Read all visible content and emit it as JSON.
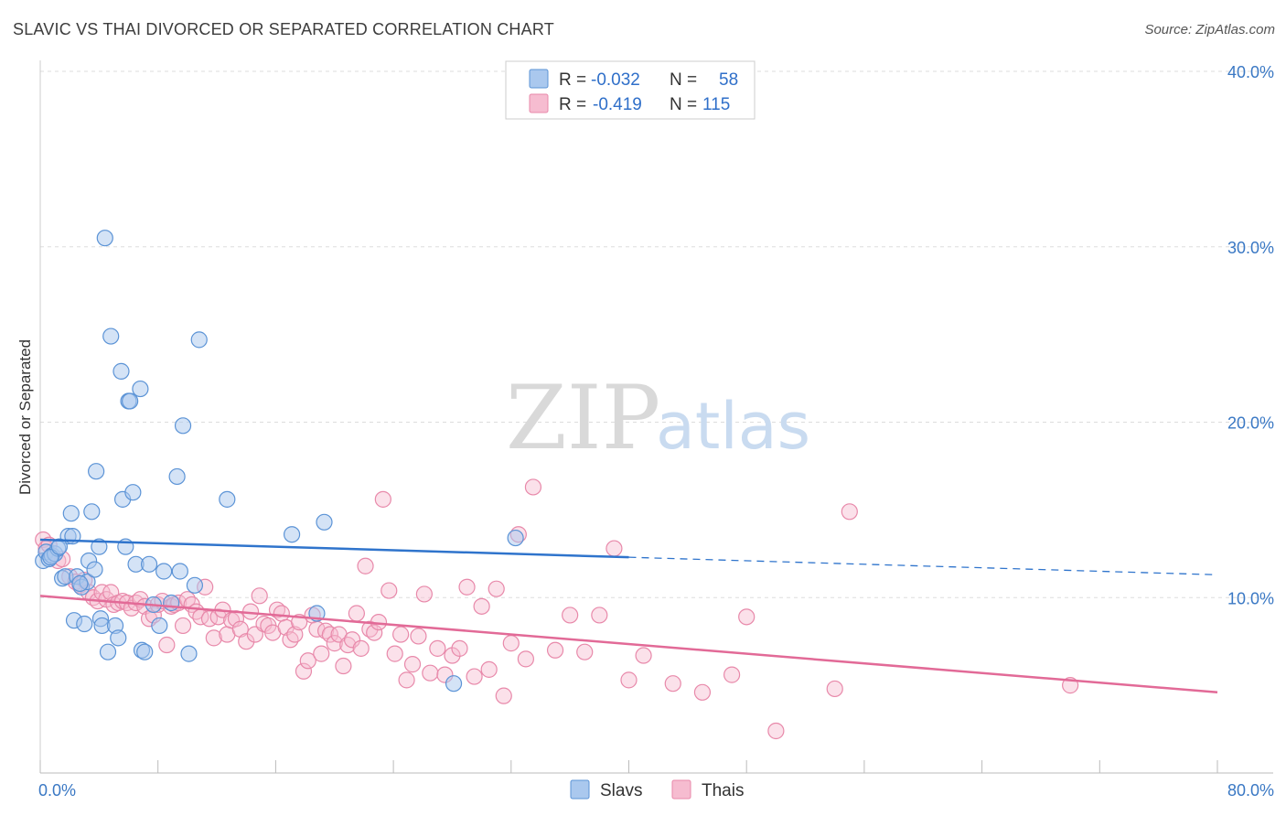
{
  "title": "SLAVIC VS THAI DIVORCED OR SEPARATED CORRELATION CHART",
  "source": "Source: ZipAtlas.com",
  "watermark": {
    "part1": "ZIP",
    "part2": "atlas"
  },
  "colors": {
    "slavs_fill": "#aac8ee",
    "slavs_stroke": "#5b93d6",
    "slavs_line": "#2f74cc",
    "thais_fill": "#f6bcd0",
    "thais_stroke": "#e889aa",
    "thais_line": "#e26a97",
    "grid": "#dddddd",
    "axis_label": "#3a78c4"
  },
  "legend": {
    "slavs": {
      "r_label": "R = ",
      "r_value": "-0.032",
      "n_label": "N = ",
      "n_value": "58"
    },
    "thais": {
      "r_label": "R = ",
      "r_value": "-0.419",
      "n_label": "N = ",
      "n_value": "115"
    }
  },
  "chart_data": {
    "type": "scatter",
    "ylabel": "Divorced or Separated",
    "xlim": [
      0,
      80
    ],
    "ylim": [
      0,
      40
    ],
    "x_tick_labels": [
      {
        "value": 0,
        "label": "0.0%"
      },
      {
        "value": 80,
        "label": "80.0%"
      }
    ],
    "y_tick_labels": [
      {
        "value": 10,
        "label": "10.0%"
      },
      {
        "value": 20,
        "label": "20.0%"
      },
      {
        "value": 30,
        "label": "30.0%"
      },
      {
        "value": 40,
        "label": "40.0%"
      }
    ],
    "series": [
      {
        "name": "Slavs",
        "trend": {
          "x0": 0,
          "y0": 13.3,
          "x1": 40,
          "y1": 12.3,
          "dash_to_x": 80,
          "dash_to_y": 11.3
        },
        "points": [
          [
            0.2,
            12.1
          ],
          [
            0.4,
            12.6
          ],
          [
            0.6,
            12.2
          ],
          [
            0.8,
            12.4
          ],
          [
            1.0,
            12.5
          ],
          [
            1.2,
            12.8
          ],
          [
            1.5,
            11.1
          ],
          [
            1.7,
            11.2
          ],
          [
            1.9,
            13.5
          ],
          [
            2.1,
            14.8
          ],
          [
            2.2,
            13.5
          ],
          [
            2.3,
            8.7
          ],
          [
            2.5,
            11.2
          ],
          [
            2.8,
            10.6
          ],
          [
            3.0,
            8.5
          ],
          [
            3.2,
            10.9
          ],
          [
            3.3,
            12.1
          ],
          [
            3.5,
            14.9
          ],
          [
            3.7,
            11.6
          ],
          [
            3.8,
            17.2
          ],
          [
            4.1,
            8.8
          ],
          [
            4.2,
            8.4
          ],
          [
            4.4,
            30.5
          ],
          [
            4.6,
            6.9
          ],
          [
            4.8,
            24.9
          ],
          [
            5.1,
            8.4
          ],
          [
            5.3,
            7.7
          ],
          [
            5.5,
            22.9
          ],
          [
            5.6,
            15.6
          ],
          [
            5.8,
            12.9
          ],
          [
            6.0,
            21.2
          ],
          [
            6.1,
            21.2
          ],
          [
            6.3,
            16.0
          ],
          [
            6.5,
            11.9
          ],
          [
            6.8,
            21.9
          ],
          [
            6.9,
            7.0
          ],
          [
            7.1,
            6.9
          ],
          [
            7.4,
            11.9
          ],
          [
            7.7,
            9.6
          ],
          [
            8.1,
            8.4
          ],
          [
            8.4,
            11.5
          ],
          [
            8.9,
            9.7
          ],
          [
            9.3,
            16.9
          ],
          [
            9.5,
            11.5
          ],
          [
            9.7,
            19.8
          ],
          [
            10.1,
            6.8
          ],
          [
            10.5,
            10.7
          ],
          [
            10.8,
            24.7
          ],
          [
            12.7,
            15.6
          ],
          [
            17.1,
            13.6
          ],
          [
            19.3,
            14.3
          ],
          [
            28.1,
            5.1
          ],
          [
            32.3,
            13.4
          ],
          [
            18.8,
            9.1
          ],
          [
            0.7,
            12.3
          ],
          [
            1.3,
            12.9
          ],
          [
            2.7,
            10.8
          ],
          [
            4.0,
            12.9
          ]
        ]
      },
      {
        "name": "Thais",
        "trend": {
          "x0": 0,
          "y0": 10.1,
          "x1": 80,
          "y1": 4.6
        },
        "points": [
          [
            0.2,
            13.3
          ],
          [
            0.4,
            12.8
          ],
          [
            0.6,
            13.0
          ],
          [
            0.8,
            12.4
          ],
          [
            1.2,
            12.1
          ],
          [
            1.5,
            12.2
          ],
          [
            2.0,
            11.2
          ],
          [
            2.4,
            10.9
          ],
          [
            2.7,
            10.7
          ],
          [
            3.0,
            11.0
          ],
          [
            3.3,
            10.3
          ],
          [
            3.6,
            10.0
          ],
          [
            3.9,
            9.8
          ],
          [
            4.2,
            10.3
          ],
          [
            4.5,
            9.9
          ],
          [
            4.8,
            10.3
          ],
          [
            5.0,
            9.6
          ],
          [
            5.3,
            9.7
          ],
          [
            5.6,
            9.8
          ],
          [
            5.9,
            9.7
          ],
          [
            6.2,
            9.4
          ],
          [
            6.5,
            9.7
          ],
          [
            6.8,
            9.9
          ],
          [
            7.1,
            9.5
          ],
          [
            7.4,
            8.8
          ],
          [
            7.7,
            9.0
          ],
          [
            8.0,
            9.6
          ],
          [
            8.3,
            9.8
          ],
          [
            8.6,
            7.3
          ],
          [
            8.9,
            9.5
          ],
          [
            9.1,
            9.6
          ],
          [
            9.4,
            9.7
          ],
          [
            9.7,
            8.4
          ],
          [
            10.0,
            9.9
          ],
          [
            10.3,
            9.6
          ],
          [
            10.6,
            9.2
          ],
          [
            10.9,
            8.9
          ],
          [
            11.2,
            10.6
          ],
          [
            11.5,
            8.8
          ],
          [
            11.8,
            7.7
          ],
          [
            12.1,
            8.9
          ],
          [
            12.4,
            9.3
          ],
          [
            12.7,
            7.9
          ],
          [
            13.0,
            8.7
          ],
          [
            13.3,
            8.8
          ],
          [
            13.6,
            8.2
          ],
          [
            14.0,
            7.5
          ],
          [
            14.3,
            9.2
          ],
          [
            14.6,
            7.9
          ],
          [
            14.9,
            10.1
          ],
          [
            15.2,
            8.5
          ],
          [
            15.5,
            8.4
          ],
          [
            15.8,
            8.0
          ],
          [
            16.1,
            9.3
          ],
          [
            16.4,
            9.1
          ],
          [
            16.7,
            8.3
          ],
          [
            17.0,
            7.6
          ],
          [
            17.3,
            7.9
          ],
          [
            17.6,
            8.6
          ],
          [
            17.9,
            5.8
          ],
          [
            18.2,
            6.4
          ],
          [
            18.5,
            9.0
          ],
          [
            18.8,
            8.2
          ],
          [
            19.1,
            6.8
          ],
          [
            19.4,
            8.1
          ],
          [
            19.7,
            7.9
          ],
          [
            20.0,
            7.4
          ],
          [
            20.3,
            7.9
          ],
          [
            20.6,
            6.1
          ],
          [
            20.9,
            7.3
          ],
          [
            21.2,
            7.6
          ],
          [
            21.5,
            9.1
          ],
          [
            21.8,
            7.1
          ],
          [
            22.1,
            11.8
          ],
          [
            22.4,
            8.2
          ],
          [
            22.7,
            8.0
          ],
          [
            23.0,
            8.6
          ],
          [
            23.3,
            15.6
          ],
          [
            23.7,
            10.4
          ],
          [
            24.1,
            6.8
          ],
          [
            24.5,
            7.9
          ],
          [
            24.9,
            5.3
          ],
          [
            25.3,
            6.2
          ],
          [
            25.7,
            7.8
          ],
          [
            26.1,
            10.2
          ],
          [
            26.5,
            5.7
          ],
          [
            27.0,
            7.1
          ],
          [
            27.5,
            5.6
          ],
          [
            28.0,
            6.7
          ],
          [
            28.5,
            7.1
          ],
          [
            29.0,
            10.6
          ],
          [
            29.5,
            5.5
          ],
          [
            30.0,
            9.5
          ],
          [
            30.5,
            5.9
          ],
          [
            31.0,
            10.5
          ],
          [
            31.5,
            4.4
          ],
          [
            32.0,
            7.4
          ],
          [
            32.5,
            13.6
          ],
          [
            33.0,
            6.5
          ],
          [
            33.5,
            16.3
          ],
          [
            35.0,
            7.0
          ],
          [
            36.0,
            9.0
          ],
          [
            37.0,
            6.9
          ],
          [
            38.0,
            9.0
          ],
          [
            39.0,
            12.8
          ],
          [
            40.0,
            5.3
          ],
          [
            41.0,
            6.7
          ],
          [
            43.0,
            5.1
          ],
          [
            45.0,
            4.6
          ],
          [
            47.0,
            5.6
          ],
          [
            48.0,
            8.9
          ],
          [
            50.0,
            2.4
          ],
          [
            54.0,
            4.8
          ],
          [
            55.0,
            14.9
          ],
          [
            70.0,
            5.0
          ]
        ]
      }
    ],
    "legend_position": "top-center",
    "grid": true
  }
}
